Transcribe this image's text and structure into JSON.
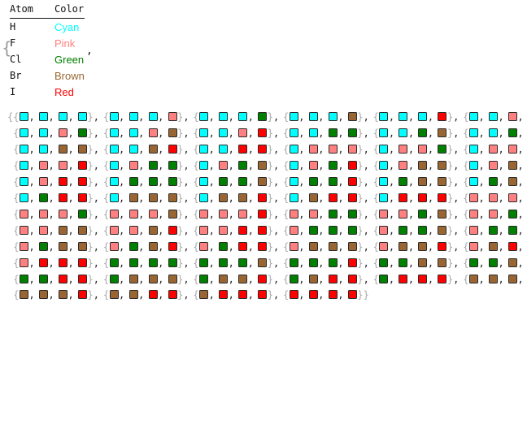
{
  "legend": {
    "headers": {
      "atom": "Atom",
      "color": "Color"
    },
    "rows": [
      {
        "atom": "H",
        "color": "Cyan",
        "hex": "#00ffff"
      },
      {
        "atom": "F",
        "color": "Pink",
        "hex": "#ff8080"
      },
      {
        "atom": "Cl",
        "color": "Green",
        "hex": "#008000"
      },
      {
        "atom": "Br",
        "color": "Brown",
        "hex": "#996633"
      },
      {
        "atom": "I",
        "color": "Red",
        "hex": "#ff0000"
      }
    ],
    "brace": "{",
    "comma": ","
  },
  "combos": {
    "order": [
      "H",
      "F",
      "Cl",
      "Br",
      "I"
    ],
    "colors": {
      "H": "#00ffff",
      "F": "#ff8080",
      "Cl": "#008000",
      "Br": "#996633",
      "I": "#ff0000"
    },
    "tuple_length": 4,
    "per_row": 6,
    "symbols": {
      "open": "{",
      "close": "}",
      "comma": ",",
      "outer_open": "{",
      "outer_close": "}"
    }
  }
}
